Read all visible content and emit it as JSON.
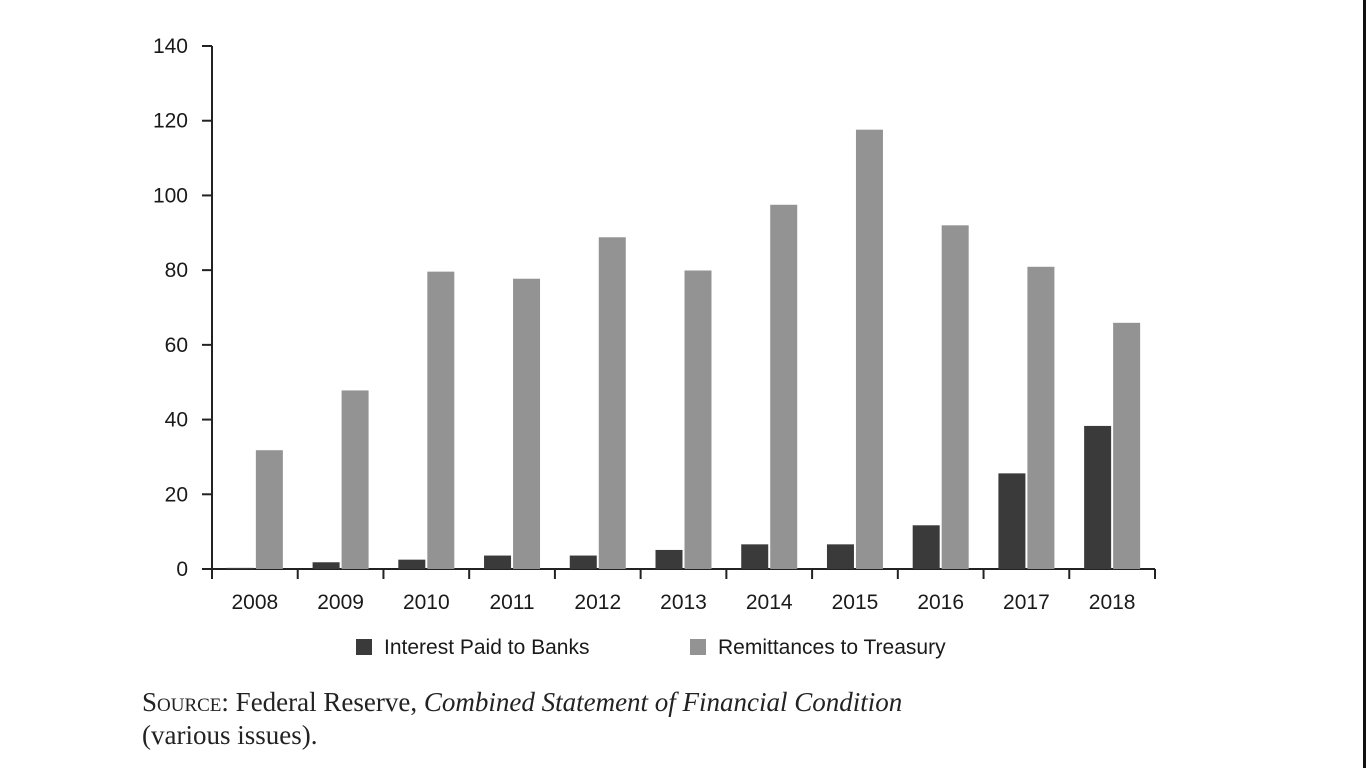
{
  "chart_data": {
    "type": "bar",
    "categories": [
      "2008",
      "2009",
      "2010",
      "2011",
      "2012",
      "2013",
      "2014",
      "2015",
      "2016",
      "2017",
      "2018"
    ],
    "series": [
      {
        "name": "Interest Paid to Banks",
        "color": "#3a3a3a",
        "values": [
          0.3,
          1.8,
          2.5,
          3.6,
          3.6,
          5.1,
          6.6,
          6.6,
          11.7,
          25.6,
          38.3
        ]
      },
      {
        "name": "Remittances to Treasury",
        "color": "#939393",
        "values": [
          31.8,
          47.8,
          79.6,
          77.7,
          88.8,
          79.9,
          97.5,
          117.6,
          92.0,
          80.9,
          65.9
        ]
      }
    ],
    "ylim": [
      0,
      140
    ],
    "yticks": [
      "0",
      "20",
      "40",
      "60",
      "80",
      "100",
      "120",
      "140"
    ],
    "ytick_values": [
      0,
      20,
      40,
      60,
      80,
      100,
      120,
      140
    ],
    "grid": false,
    "legend_position": "bottom"
  },
  "source": {
    "prefix": "Source",
    "text": ": Federal Reserve, ",
    "title": "Combined Statement of Financial Condition",
    "suffix": "(various issues)."
  }
}
